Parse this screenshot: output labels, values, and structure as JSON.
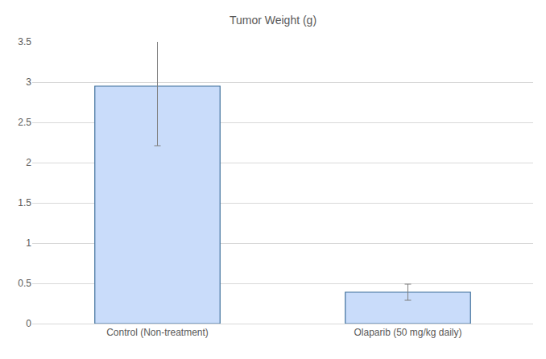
{
  "chart_data": {
    "type": "bar",
    "title": "Tumor Weight (g)",
    "categories": [
      "Control (Non-treatment)",
      "Olaparib (50 mg/kg daily)"
    ],
    "values": [
      2.95,
      0.39
    ],
    "errors": [
      0.74,
      0.1
    ],
    "color": "#c9dcfa",
    "ylim": [
      0,
      3.5
    ],
    "yticks": [
      0,
      0.5,
      1,
      1.5,
      2,
      2.5,
      3,
      3.5
    ],
    "grid": true
  }
}
